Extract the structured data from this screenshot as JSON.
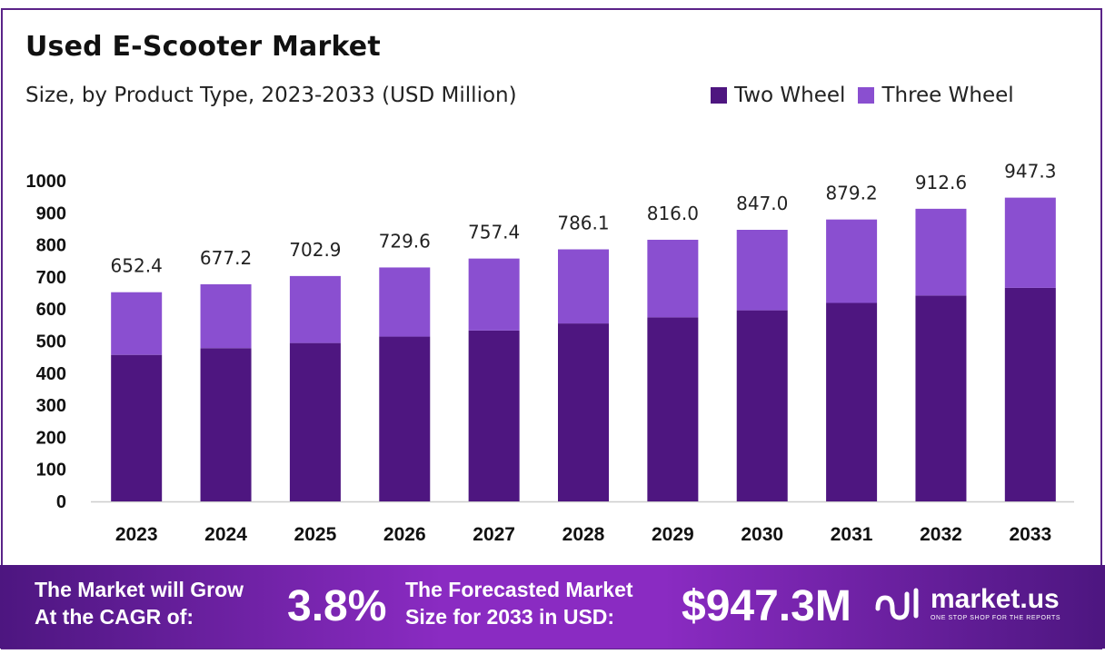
{
  "header": {
    "title": "Used E-Scooter Market",
    "subtitle": "Size, by Product Type, 2023-2033 (USD Million)"
  },
  "colors": {
    "two_wheel": "#4e1680",
    "three_wheel": "#8a4fd0",
    "frame": "#5a2388",
    "axis": "#cccccc"
  },
  "chart_data": {
    "type": "bar",
    "stacked": true,
    "categories": [
      "2023",
      "2024",
      "2025",
      "2026",
      "2027",
      "2028",
      "2029",
      "2030",
      "2031",
      "2032",
      "2033"
    ],
    "series": [
      {
        "name": "Two Wheel",
        "values": [
          457,
          478,
          494,
          514,
          533,
          555,
          574,
          596,
          619,
          642,
          666
        ]
      },
      {
        "name": "Three Wheel",
        "values": [
          195.4,
          199.2,
          208.9,
          215.6,
          224.4,
          231.1,
          242.0,
          251.0,
          260.2,
          270.6,
          281.3
        ]
      }
    ],
    "totals": [
      652.4,
      677.2,
      702.9,
      729.6,
      757.4,
      786.1,
      816.0,
      847.0,
      879.2,
      912.6,
      947.3
    ],
    "total_labels": [
      "652.4",
      "677.2",
      "702.9",
      "729.6",
      "757.4",
      "786.1",
      "816.0",
      "847.0",
      "879.2",
      "912.6",
      "947.3"
    ],
    "ylim": [
      0,
      1000
    ],
    "yticks": [
      "0",
      "100",
      "200",
      "300",
      "400",
      "500",
      "600",
      "700",
      "800",
      "900",
      "1000"
    ],
    "xlabel": "",
    "ylabel": "",
    "grid": false,
    "legend_position": "top-right"
  },
  "footer": {
    "cagr_label_line1": "The Market will Grow",
    "cagr_label_line2": "At the CAGR of:",
    "cagr_value": "3.8%",
    "forecast_label_line1": "The Forecasted Market",
    "forecast_label_line2": "Size for 2033 in USD:",
    "forecast_value": "$947.3M",
    "brand_name": "market.us",
    "brand_tagline": "ONE STOP SHOP FOR THE REPORTS",
    "brand_icon": "market-us-logo-icon"
  }
}
